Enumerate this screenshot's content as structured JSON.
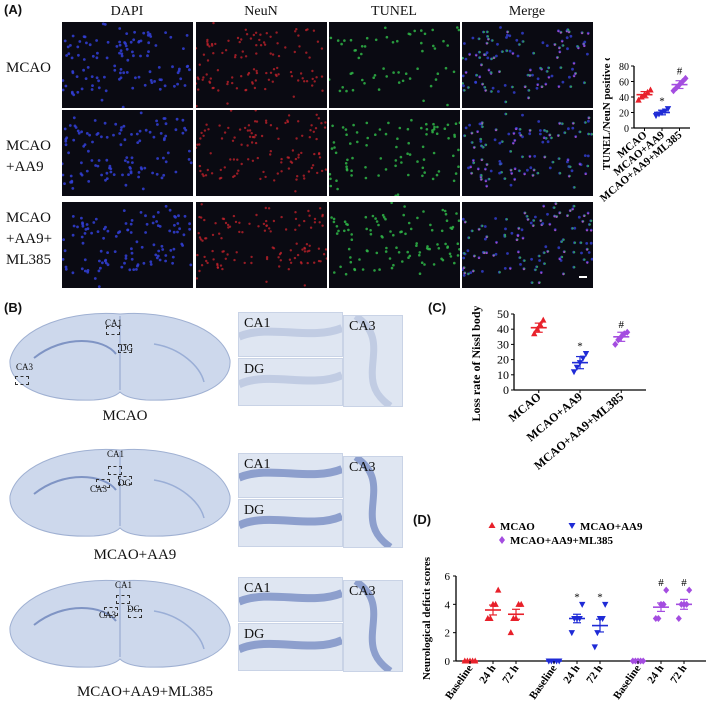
{
  "panelA": {
    "letter": "(A)",
    "columns": [
      "DAPI",
      "NeuN",
      "TUNEL",
      "Merge"
    ],
    "rows": [
      [
        "MCAO"
      ],
      [
        "MCAO",
        "+AA9"
      ],
      [
        "MCAO",
        "+AA9+",
        "ML385"
      ]
    ],
    "colors": {
      "dapi": "#3340d8",
      "neun": "#c8232c",
      "tunel": "#2fb648"
    }
  },
  "panelB": {
    "letter": "(B)",
    "rows": [
      {
        "caption": "MCAO",
        "labels": [
          "CA1",
          "DG",
          "CA3"
        ]
      },
      {
        "caption": "MCAO+AA9",
        "labels": [
          "CA1",
          "CA3",
          "DG"
        ]
      },
      {
        "caption": "MCAO+AA9+ML385",
        "labels": [
          "CA1",
          "CA3",
          "DG"
        ]
      }
    ],
    "tiles": [
      "CA1",
      "DG",
      "CA3"
    ]
  },
  "panelC": {
    "letter": "(C)"
  },
  "panelD": {
    "letter": "(D)"
  },
  "chart_data": [
    {
      "id": "A",
      "type": "scatter",
      "ylabel": "TUNEL/NeuN positive cell (%)",
      "ylim": [
        0,
        80
      ],
      "yticks": [
        0,
        20,
        40,
        60,
        80
      ],
      "categories": [
        "MCAO",
        "MCAO+AA9",
        "MCAO+AA9+ML385"
      ],
      "colors": [
        "#e8202a",
        "#1f2bd6",
        "#a44de0"
      ],
      "series": [
        {
          "category": "MCAO",
          "mean": 43,
          "sem": 4,
          "points": [
            36,
            40,
            43,
            46,
            49
          ]
        },
        {
          "category": "MCAO+AA9",
          "mean": 20,
          "sem": 3,
          "points": [
            16,
            18,
            20,
            22,
            25
          ]
        },
        {
          "category": "MCAO+AA9+ML385",
          "mean": 56,
          "sem": 5,
          "points": [
            48,
            52,
            56,
            60,
            64
          ]
        }
      ],
      "annotations": [
        {
          "category": "MCAO+AA9",
          "text": "*"
        },
        {
          "category": "MCAO+AA9+ML385",
          "text": "#"
        }
      ]
    },
    {
      "id": "C",
      "type": "scatter",
      "ylabel": "Loss rate of Nissl body (%)",
      "ylim": [
        0,
        50
      ],
      "yticks": [
        0,
        10,
        20,
        30,
        40,
        50
      ],
      "categories": [
        "MCAO",
        "MCAO+AA9",
        "MCAO+AA9+ML385"
      ],
      "colors": [
        "#e8202a",
        "#1f2bd6",
        "#a44de0"
      ],
      "series": [
        {
          "category": "MCAO",
          "mean": 41,
          "sem": 3,
          "points": [
            37,
            40,
            43,
            46
          ]
        },
        {
          "category": "MCAO+AA9",
          "mean": 18,
          "sem": 4,
          "points": [
            12,
            15,
            18,
            21,
            24
          ]
        },
        {
          "category": "MCAO+AA9+ML385",
          "mean": 35,
          "sem": 3,
          "points": [
            30,
            33,
            35,
            37,
            38
          ]
        }
      ],
      "annotations": [
        {
          "category": "MCAO+AA9",
          "text": "*"
        },
        {
          "category": "MCAO+AA9+ML385",
          "text": "#"
        }
      ]
    },
    {
      "id": "D",
      "type": "scatter",
      "ylabel": "Neurological deficit scores",
      "ylim": [
        0,
        6
      ],
      "yticks": [
        0,
        2,
        4,
        6
      ],
      "legend": [
        "MCAO",
        "MCAO+AA9",
        "MCAO+AA9+ML385"
      ],
      "legend_position": "top",
      "colors": [
        "#e8202a",
        "#1f2bd6",
        "#a44de0"
      ],
      "x": [
        "Baseline",
        "24 h",
        "72 h",
        "Baseline",
        "24 h",
        "72 h",
        "Baseline",
        "24 h",
        "72 h"
      ],
      "series": [
        {
          "name": "MCAO",
          "groups": [
            {
              "x": "Baseline",
              "mean": 0,
              "sem": 0,
              "points": [
                0,
                0,
                0,
                0,
                0
              ]
            },
            {
              "x": "24 h",
              "mean": 3.6,
              "sem": 0.35,
              "points": [
                3,
                3,
                4,
                4,
                5
              ]
            },
            {
              "x": "72 h",
              "mean": 3.3,
              "sem": 0.35,
              "points": [
                2,
                3,
                3,
                4,
                4
              ]
            }
          ]
        },
        {
          "name": "MCAO+AA9",
          "groups": [
            {
              "x": "Baseline",
              "mean": 0,
              "sem": 0,
              "points": [
                0,
                0,
                0,
                0,
                0
              ]
            },
            {
              "x": "24 h",
              "mean": 3.0,
              "sem": 0.3,
              "points": [
                2,
                3,
                3,
                3,
                4
              ]
            },
            {
              "x": "72 h",
              "mean": 2.5,
              "sem": 0.45,
              "points": [
                1,
                2,
                3,
                3,
                4
              ]
            }
          ]
        },
        {
          "name": "MCAO+AA9+ML385",
          "groups": [
            {
              "x": "Baseline",
              "mean": 0,
              "sem": 0,
              "points": [
                0,
                0,
                0,
                0,
                0
              ]
            },
            {
              "x": "24 h",
              "mean": 3.8,
              "sem": 0.3,
              "points": [
                3,
                3,
                4,
                4,
                5
              ]
            },
            {
              "x": "72 h",
              "mean": 4.0,
              "sem": 0.35,
              "points": [
                3,
                4,
                4,
                4,
                5
              ]
            }
          ]
        }
      ],
      "annotations": [
        {
          "index": 4,
          "text": "*"
        },
        {
          "index": 5,
          "text": "*"
        },
        {
          "index": 7,
          "text": "#"
        },
        {
          "index": 8,
          "text": "#"
        }
      ]
    }
  ]
}
